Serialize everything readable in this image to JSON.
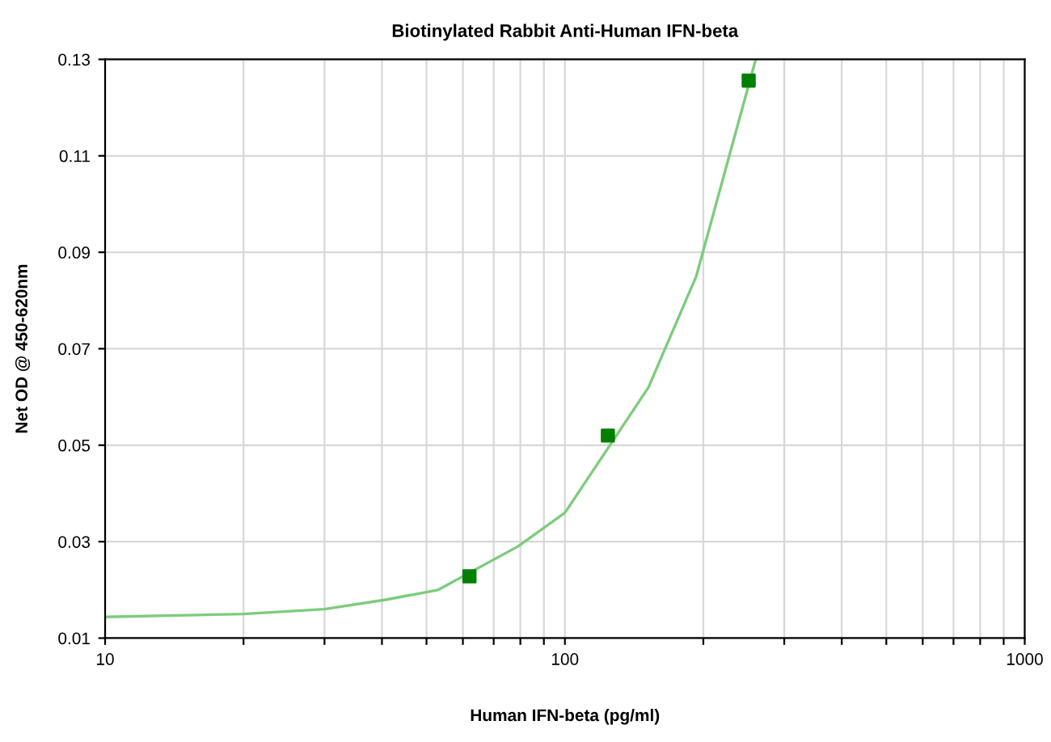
{
  "chart_data": {
    "type": "line",
    "title": "Biotinylated Rabbit Anti-Human IFN-beta",
    "xlabel": "Human IFN-beta (pg/ml)",
    "ylabel": "Net OD @ 450-620nm",
    "log": "x",
    "grid": true,
    "series": [
      {
        "color": "#7ccc7c",
        "marker": "none",
        "x": [
          10,
          20,
          30,
          41,
          53,
          79,
          100,
          152,
          193,
          260
        ],
        "values": [
          0.0144,
          0.015,
          0.016,
          0.018,
          0.02,
          0.029,
          0.036,
          0.062,
          0.085,
          0.13
        ]
      },
      {
        "type": "scatter",
        "color": "#008000",
        "marker": "square",
        "x": [
          62,
          124,
          251
        ],
        "values": [
          0.0228,
          0.052,
          0.1256
        ]
      }
    ],
    "xlim": [
      10,
      1000
    ],
    "ylim": [
      0.01,
      0.13
    ],
    "xticks": [
      10,
      {
        "value": 20,
        "label": null
      },
      {
        "value": 30,
        "label": null
      },
      {
        "value": 40,
        "label": null
      },
      {
        "value": 50,
        "label": null
      },
      {
        "value": 60,
        "label": null
      },
      {
        "value": 70,
        "label": null
      },
      {
        "value": 80,
        "label": null
      },
      {
        "value": 90,
        "label": null
      },
      100,
      {
        "value": 200,
        "label": null
      },
      {
        "value": 300,
        "label": null
      },
      {
        "value": 400,
        "label": null
      },
      {
        "value": 500,
        "label": null
      },
      {
        "value": 600,
        "label": null
      },
      {
        "value": 700,
        "label": null
      },
      {
        "value": 800,
        "label": null
      },
      {
        "value": 900,
        "label": null
      },
      1000
    ],
    "yticks": [
      0.01,
      0.03,
      0.05,
      0.07,
      0.09,
      0.11,
      0.13
    ]
  }
}
